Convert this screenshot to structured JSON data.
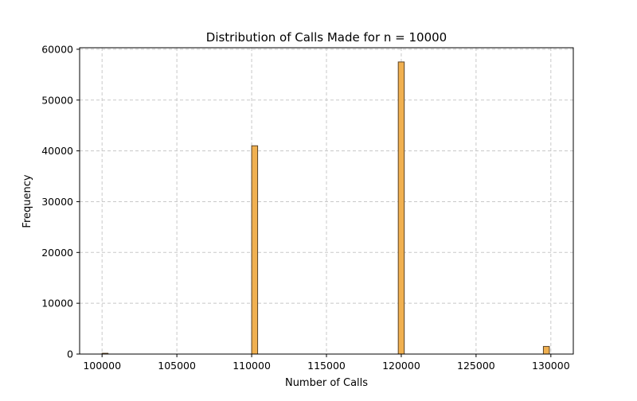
{
  "chart_data": {
    "type": "bar",
    "title": "Distribution of Calls Made for n = 10000",
    "xlabel": "Number of Calls",
    "ylabel": "Frequency",
    "xlim": [
      98500,
      131500
    ],
    "ylim": [
      0,
      60300
    ],
    "x_ticks": [
      100000,
      105000,
      110000,
      115000,
      120000,
      125000,
      130000
    ],
    "y_ticks": [
      0,
      10000,
      20000,
      30000,
      40000,
      50000,
      60000
    ],
    "grid": true,
    "bar_color": "#f0b050",
    "edge_color": "#5a4326",
    "bins": [
      {
        "x0": 100000,
        "x1": 100400,
        "value": 150
      },
      {
        "x0": 110000,
        "x1": 110400,
        "value": 41000
      },
      {
        "x0": 119800,
        "x1": 120200,
        "value": 57500
      },
      {
        "x0": 129500,
        "x1": 129900,
        "value": 1500
      }
    ]
  }
}
